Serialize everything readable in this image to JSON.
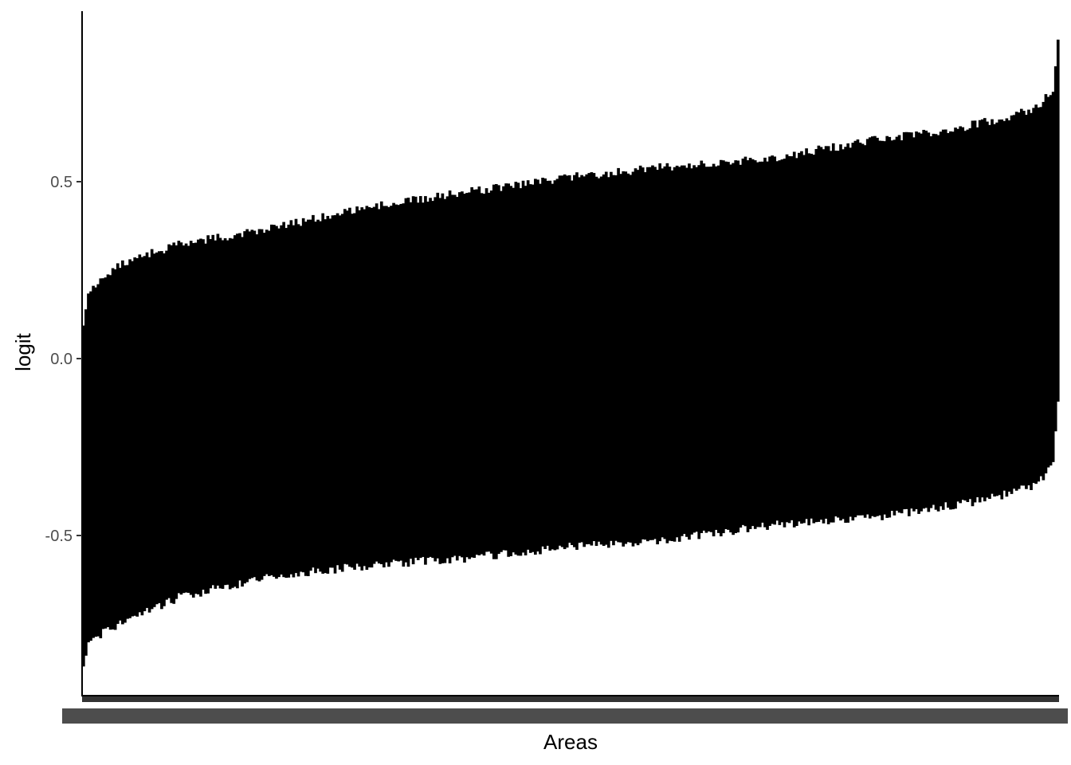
{
  "chart_data": {
    "type": "errorbar",
    "xlabel": "Areas",
    "ylabel": "logit",
    "ylim": [
      -0.95,
      0.98
    ],
    "y_ticks": [
      -0.5,
      0.0,
      0.5
    ],
    "y_tick_labels": [
      "-0.5",
      "0.0",
      "0.5"
    ],
    "x_tick_labels": "unreadable (overplotted area labels)",
    "n_areas": 400,
    "order": "sorted ascending by estimate",
    "series": [
      {
        "center_start": -0.35,
        "center_end": 0.35,
        "lower_bound_profile": {
          "x_fraction": [
            0.0,
            0.005,
            0.02,
            0.05,
            0.1,
            0.2,
            0.3,
            0.4,
            0.5,
            0.6,
            0.7,
            0.8,
            0.9,
            0.95,
            0.98,
            0.995,
            1.0
          ],
          "value": [
            -0.87,
            -0.8,
            -0.76,
            -0.72,
            -0.66,
            -0.6,
            -0.57,
            -0.55,
            -0.52,
            -0.5,
            -0.46,
            -0.44,
            -0.4,
            -0.37,
            -0.34,
            -0.29,
            -0.12
          ]
        },
        "upper_bound_profile": {
          "x_fraction": [
            0.0,
            0.005,
            0.02,
            0.05,
            0.1,
            0.2,
            0.3,
            0.4,
            0.5,
            0.6,
            0.7,
            0.8,
            0.9,
            0.95,
            0.98,
            0.995,
            1.0
          ],
          "value": [
            0.09,
            0.18,
            0.22,
            0.27,
            0.31,
            0.36,
            0.42,
            0.46,
            0.5,
            0.53,
            0.55,
            0.6,
            0.64,
            0.67,
            0.7,
            0.75,
            0.9
          ]
        }
      }
    ],
    "bar_color": "#000000",
    "axis_color": "#000000",
    "tick_label_color": "#4d4d4d",
    "grid": false
  }
}
